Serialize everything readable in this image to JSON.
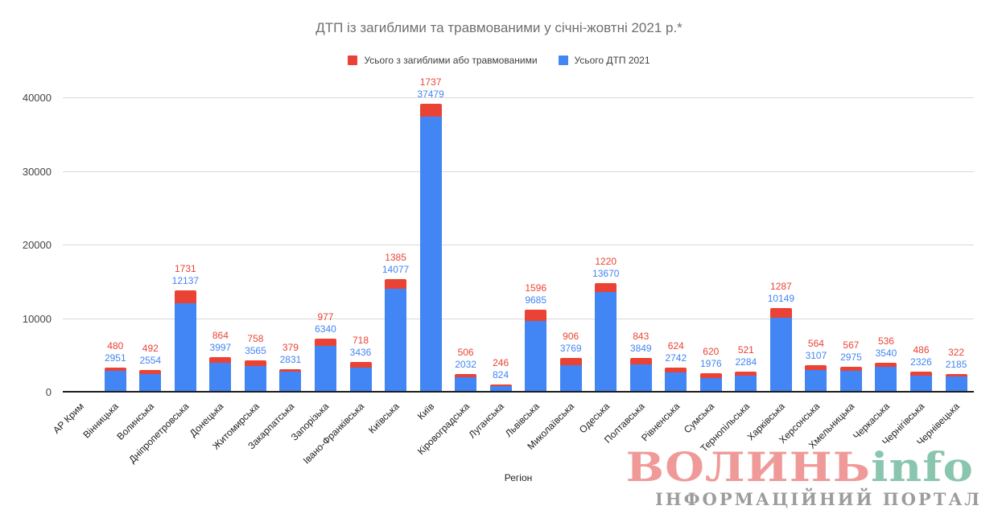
{
  "chart_data": {
    "type": "bar",
    "stacked": true,
    "title": "ДТП із загиблими та травмованими у січні-жовтні 2021 р.*",
    "xlabel": "Регіон",
    "ylabel": "",
    "ylim": [
      0,
      40000
    ],
    "y_ticks": [
      "0",
      "10000",
      "20000",
      "30000",
      "40000"
    ],
    "grid": true,
    "legend_position": "top",
    "categories": [
      "АР Крим",
      "Вінницька",
      "Волинська",
      "Дніпропетровська",
      "Донецька",
      "Житомирська",
      "Закарпатська",
      "Запорізька",
      "Івано-Франківська",
      "Київська",
      "Київ",
      "Кіровоградська",
      "Луганська",
      "Львівська",
      "Миколаївська",
      "Одеська",
      "Полтавська",
      "Рівненська",
      "Сумська",
      "Тернопільська",
      "Харківська",
      "Херсонська",
      "Хмельницька",
      "Черкаська",
      "Чернігівська",
      "Чернівецька"
    ],
    "series": [
      {
        "name": "Усього ДТП 2021",
        "color": "#4285F4",
        "stack_position": "bottom",
        "values": [
          null,
          2951,
          2554,
          12137,
          3997,
          3565,
          2831,
          6340,
          3436,
          14077,
          37479,
          2032,
          824,
          9685,
          3769,
          13670,
          3849,
          2742,
          1976,
          2284,
          10149,
          3107,
          2975,
          3540,
          2326,
          2185
        ]
      },
      {
        "name": "Усього з загиблими або травмованими",
        "color": "#EA4335",
        "stack_position": "top",
        "values": [
          null,
          480,
          492,
          1731,
          864,
          758,
          379,
          977,
          718,
          1385,
          1737,
          506,
          246,
          1596,
          906,
          1220,
          843,
          624,
          620,
          521,
          1287,
          564,
          567,
          536,
          486,
          322
        ]
      }
    ],
    "value_labels": true
  },
  "watermark": {
    "brand_primary": "ВОЛИНЬ",
    "brand_secondary": "info",
    "tagline": "ІНФОРМАЦІЙНИЙ ПОРТАЛ",
    "primary_color": "#ef9a99",
    "secondary_color": "#8ac6af",
    "tagline_color": "#9c9c9c"
  },
  "style": {
    "grid_color": "#d9d9d9",
    "axis_color": "#1d1d1d",
    "title_color": "#6f6f6f"
  }
}
